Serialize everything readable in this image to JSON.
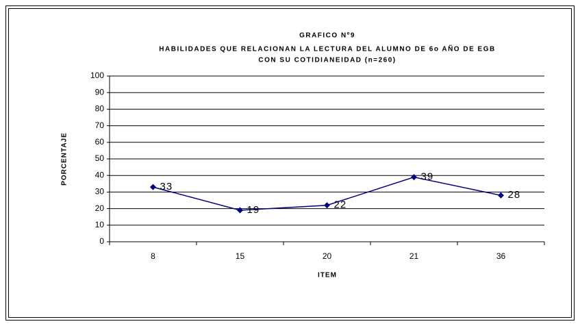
{
  "chart_data": {
    "type": "line",
    "title": [
      "GRAFICO Nº9",
      "HABILIDADES QUE RELACIONAN LA LECTURA DEL ALUMNO DE 6o AÑO DE EGB",
      "CON SU COTIDIANEIDAD (n=260)"
    ],
    "x_label": "ITEM",
    "y_label": "PORCENTAJE",
    "categories": [
      "8",
      "15",
      "20",
      "21",
      "36"
    ],
    "values": [
      33,
      19,
      22,
      39,
      28
    ],
    "color": "#000080",
    "ylim": [
      0,
      100
    ],
    "yticks": [
      0,
      10,
      20,
      30,
      40,
      50,
      60,
      70,
      80,
      90,
      100
    ],
    "grid": true
  }
}
